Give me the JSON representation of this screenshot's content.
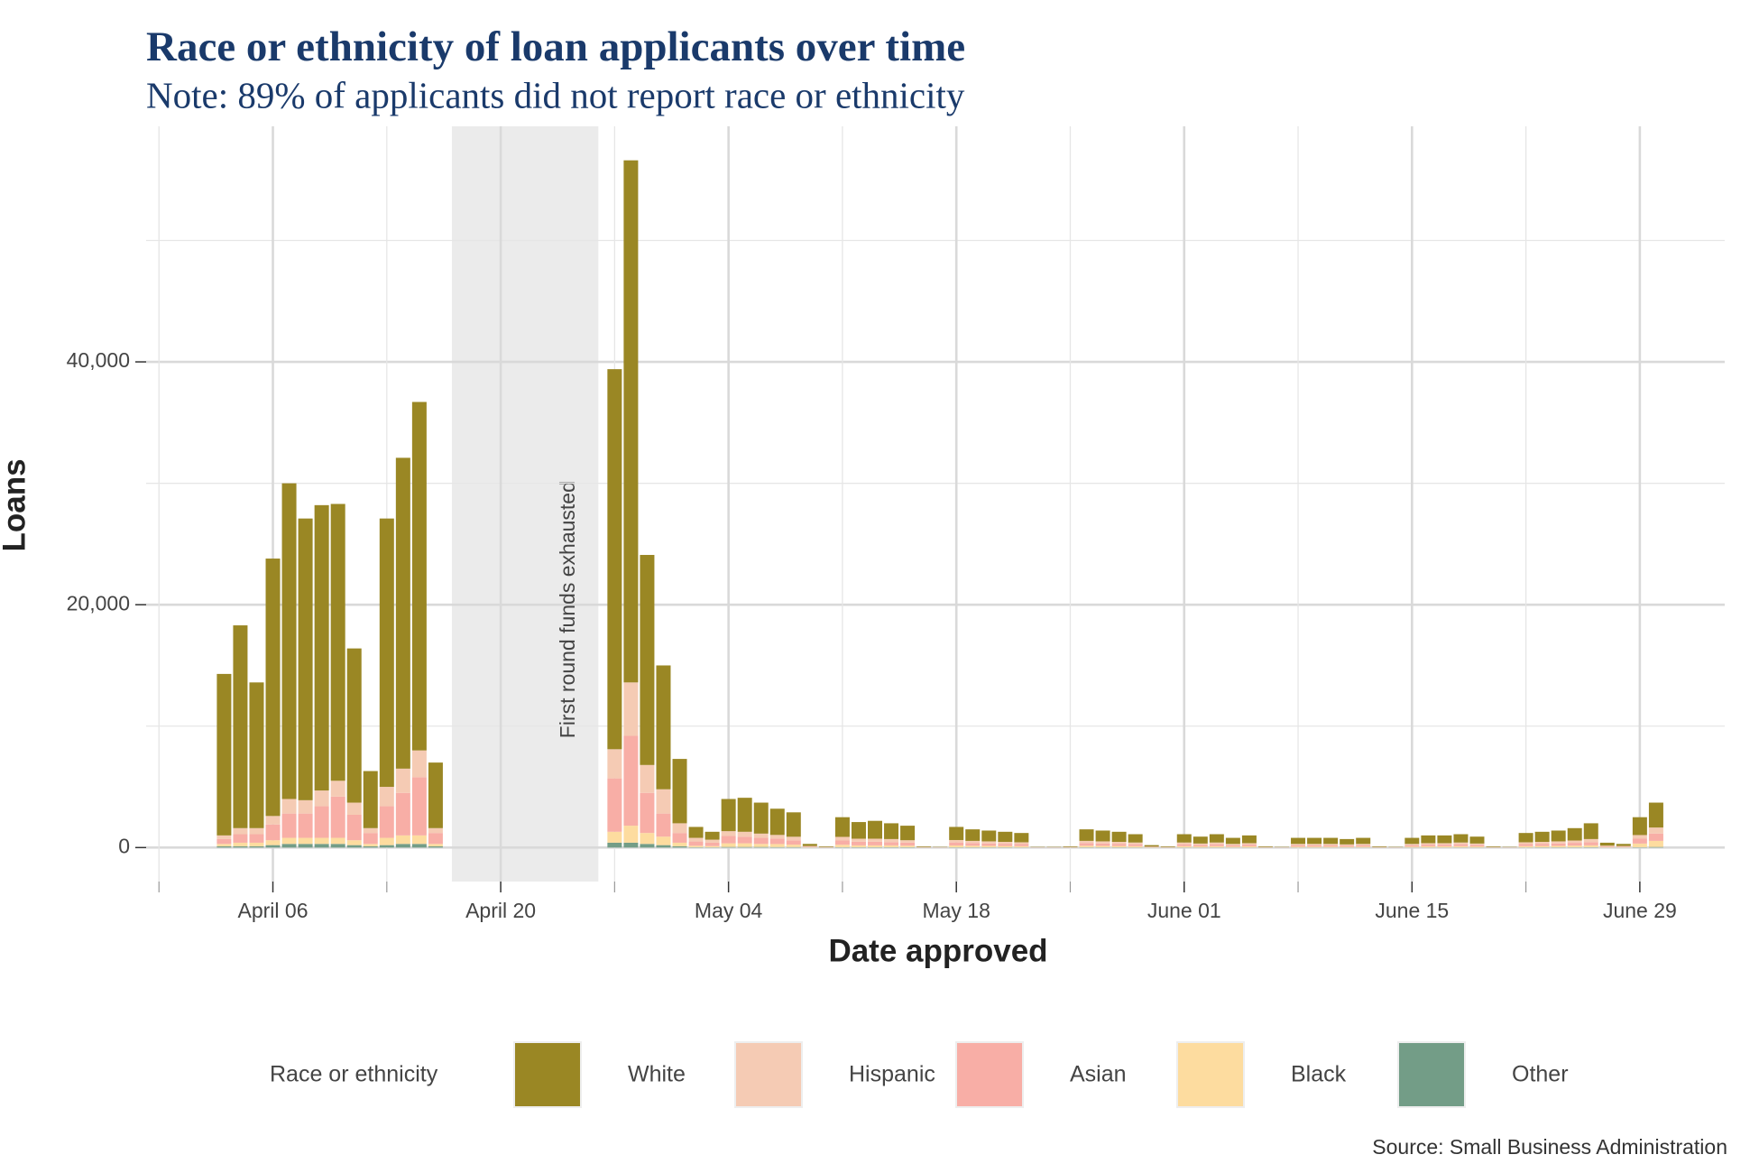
{
  "chart_data": {
    "type": "stacked_bar",
    "title": "Race or ethnicity of loan applicants over time",
    "subtitle": "Note: 89% of applicants did not report race or ethnicity",
    "x_label": "Date approved",
    "y_label": "Loans",
    "legend_title": "Race or ethnicity",
    "source": "Source: Small Business Administration",
    "annotation": {
      "text": "First round funds exhausted",
      "from": "April 17",
      "to": "April 26"
    },
    "x": [
      "April 03",
      "April 04",
      "April 05",
      "April 06",
      "April 07",
      "April 08",
      "April 09",
      "April 10",
      "April 11",
      "April 12",
      "April 13",
      "April 14",
      "April 15",
      "April 16",
      "April 17",
      "April 18",
      "April 19",
      "April 20",
      "April 21",
      "April 22",
      "April 23",
      "April 24",
      "April 25",
      "April 26",
      "April 27",
      "April 28",
      "April 29",
      "April 30",
      "May 01",
      "May 02",
      "May 03",
      "May 04",
      "May 05",
      "May 06",
      "May 07",
      "May 08",
      "May 09",
      "May 10",
      "May 11",
      "May 12",
      "May 13",
      "May 14",
      "May 15",
      "May 16",
      "May 17",
      "May 18",
      "May 19",
      "May 20",
      "May 21",
      "May 22",
      "May 23",
      "May 24",
      "May 25",
      "May 26",
      "May 27",
      "May 28",
      "May 29",
      "May 30",
      "May 31",
      "June 01",
      "June 02",
      "June 03",
      "June 04",
      "June 05",
      "June 06",
      "June 07",
      "June 08",
      "June 09",
      "June 10",
      "June 11",
      "June 12",
      "June 13",
      "June 14",
      "June 15",
      "June 16",
      "June 17",
      "June 18",
      "June 19",
      "June 20",
      "June 21",
      "June 22",
      "June 23",
      "June 24",
      "June 25",
      "June 26",
      "June 27",
      "June 28",
      "June 29",
      "June 30"
    ],
    "xticks": [
      "April 06",
      "April 20",
      "May 04",
      "May 18",
      "June 01",
      "June 15",
      "June 29"
    ],
    "ylim": [
      -2800,
      59400
    ],
    "yticks": [
      0,
      {
        "value": 20000,
        "label": "20,000"
      },
      {
        "value": 40000,
        "label": "40,000"
      }
    ],
    "minor_yticks": [
      10000,
      30000,
      50000
    ],
    "grid": true,
    "legend_position": "bottom",
    "series": [
      {
        "name": "White",
        "color": "#9a8724",
        "values": [
          13300,
          16700,
          12000,
          21200,
          26000,
          23200,
          23500,
          22800,
          12700,
          4700,
          22100,
          25600,
          28700,
          5400,
          null,
          null,
          null,
          null,
          null,
          null,
          null,
          null,
          null,
          null,
          31300,
          43000,
          17300,
          10200,
          5300,
          900,
          650,
          2650,
          2800,
          2550,
          2160,
          2010,
          175,
          53,
          1620,
          1370,
          1470,
          1300,
          1195,
          53,
          26,
          1080,
          950,
          890,
          830,
          765,
          26,
          26,
          53,
          950,
          890,
          830,
          685,
          122,
          53,
          685,
          568,
          685,
          500,
          638,
          53,
          26,
          500,
          500,
          500,
          440,
          500,
          53,
          26,
          500,
          638,
          638,
          685,
          568,
          53,
          26,
          765,
          830,
          890,
          1020,
          1300,
          245,
          175,
          1470,
          2050
        ]
      },
      {
        "name": "Hispanic",
        "color": "#f5cbb4",
        "values": [
          300,
          500,
          500,
          700,
          1200,
          1100,
          1300,
          1300,
          1000,
          400,
          1600,
          2000,
          2200,
          400,
          null,
          null,
          null,
          null,
          null,
          null,
          null,
          null,
          null,
          null,
          2400,
          4400,
          2300,
          2000,
          800,
          300,
          250,
          400,
          400,
          350,
          300,
          300,
          40,
          15,
          300,
          250,
          250,
          250,
          200,
          15,
          8,
          200,
          180,
          170,
          160,
          150,
          8,
          8,
          15,
          180,
          170,
          160,
          140,
          25,
          15,
          140,
          110,
          140,
          100,
          120,
          15,
          8,
          100,
          100,
          100,
          90,
          100,
          15,
          8,
          100,
          120,
          120,
          140,
          110,
          15,
          8,
          150,
          160,
          170,
          190,
          250,
          50,
          40,
          300,
          500
        ]
      },
      {
        "name": "Asian",
        "color": "#f8aea6",
        "values": [
          400,
          700,
          700,
          1300,
          2000,
          2000,
          2600,
          3400,
          2100,
          900,
          2600,
          3500,
          4800,
          900,
          null,
          null,
          null,
          null,
          null,
          null,
          null,
          null,
          null,
          null,
          4400,
          7400,
          3300,
          1900,
          800,
          350,
          280,
          600,
          550,
          500,
          450,
          350,
          50,
          20,
          350,
          300,
          300,
          270,
          250,
          20,
          10,
          250,
          220,
          200,
          180,
          170,
          10,
          10,
          20,
          220,
          200,
          180,
          160,
          30,
          20,
          160,
          130,
          160,
          120,
          140,
          20,
          10,
          120,
          120,
          120,
          100,
          120,
          20,
          10,
          120,
          140,
          140,
          160,
          130,
          20,
          10,
          170,
          180,
          200,
          230,
          270,
          60,
          50,
          400,
          600
        ]
      },
      {
        "name": "Black",
        "color": "#fddc9f",
        "values": [
          200,
          300,
          300,
          400,
          500,
          500,
          500,
          500,
          400,
          200,
          600,
          700,
          700,
          200,
          null,
          null,
          null,
          null,
          null,
          null,
          null,
          null,
          null,
          null,
          900,
          1400,
          900,
          700,
          300,
          120,
          100,
          300,
          300,
          250,
          250,
          200,
          30,
          10,
          200,
          150,
          150,
          150,
          130,
          10,
          5,
          150,
          130,
          120,
          110,
          100,
          5,
          5,
          10,
          130,
          120,
          110,
          100,
          20,
          10,
          100,
          80,
          100,
          70,
          90,
          10,
          5,
          70,
          70,
          70,
          60,
          70,
          10,
          5,
          70,
          90,
          90,
          100,
          80,
          10,
          5,
          100,
          110,
          120,
          140,
          150,
          40,
          30,
          300,
          500
        ]
      },
      {
        "name": "Other",
        "color": "#739d87",
        "values": [
          100,
          100,
          100,
          200,
          300,
          300,
          300,
          300,
          200,
          100,
          200,
          300,
          300,
          100,
          null,
          null,
          null,
          null,
          null,
          null,
          null,
          null,
          null,
          null,
          400,
          400,
          300,
          200,
          100,
          30,
          20,
          50,
          50,
          50,
          40,
          40,
          5,
          2,
          30,
          30,
          30,
          30,
          25,
          2,
          1,
          20,
          20,
          20,
          20,
          15,
          1,
          1,
          2,
          20,
          20,
          20,
          15,
          3,
          2,
          15,
          12,
          15,
          10,
          12,
          2,
          1,
          10,
          10,
          10,
          10,
          10,
          2,
          1,
          10,
          12,
          12,
          15,
          12,
          2,
          1,
          15,
          20,
          20,
          20,
          30,
          5,
          5,
          30,
          50
        ]
      }
    ]
  }
}
